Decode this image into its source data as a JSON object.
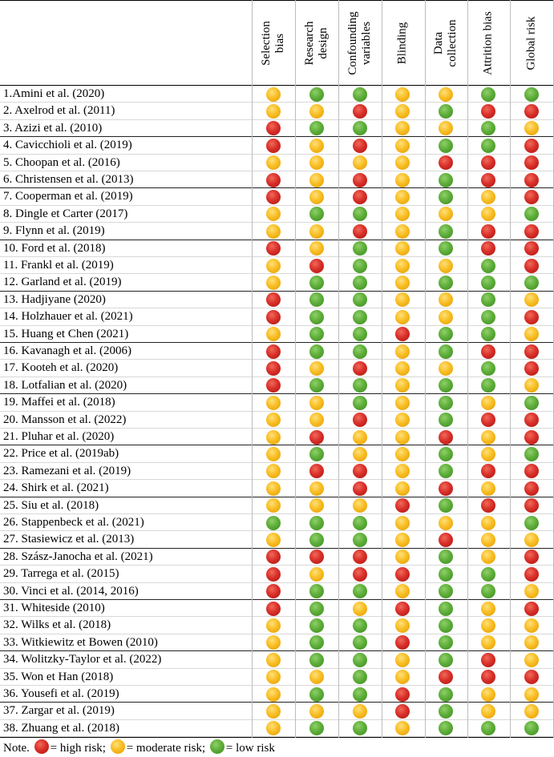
{
  "columns": [
    {
      "line1": "Selection",
      "line2": "bias"
    },
    {
      "line1": "Research",
      "line2": "design"
    },
    {
      "line1": "Confounding",
      "line2": "variables"
    },
    {
      "line1": "Blinding",
      "line2": ""
    },
    {
      "line1": "Data",
      "line2": "collection"
    },
    {
      "line1": "Attrition bias",
      "line2": ""
    },
    {
      "line1": "Global risk",
      "line2": ""
    }
  ],
  "colors": {
    "green": "#5fae3a",
    "yellow": "#f8be24",
    "red": "#d9302a"
  },
  "rows": [
    {
      "study": "1.Amini et al. (2020)",
      "ratings": [
        "yellow",
        "green",
        "green",
        "yellow",
        "yellow",
        "green",
        "green"
      ]
    },
    {
      "study": "2. Axelrod et al. (2011)",
      "ratings": [
        "yellow",
        "yellow",
        "red",
        "yellow",
        "green",
        "red",
        "red"
      ]
    },
    {
      "study": "3. Azizi et al. (2010)",
      "ratings": [
        "red",
        "green",
        "green",
        "yellow",
        "yellow",
        "green",
        "yellow"
      ]
    },
    {
      "study": "4. Cavicchioli et al. (2019)",
      "ratings": [
        "red",
        "yellow",
        "red",
        "yellow",
        "green",
        "green",
        "red"
      ]
    },
    {
      "study": "5. Choopan et al. (2016)",
      "ratings": [
        "yellow",
        "yellow",
        "yellow",
        "yellow",
        "red",
        "red",
        "red"
      ]
    },
    {
      "study": "6. Christensen et al. (2013)",
      "ratings": [
        "red",
        "yellow",
        "red",
        "yellow",
        "green",
        "red",
        "red"
      ]
    },
    {
      "study": "7. Cooperman et al. (2019)",
      "ratings": [
        "red",
        "yellow",
        "red",
        "yellow",
        "green",
        "yellow",
        "red"
      ]
    },
    {
      "study": "8. Dingle et Carter (2017)",
      "ratings": [
        "yellow",
        "green",
        "green",
        "yellow",
        "yellow",
        "yellow",
        "green"
      ]
    },
    {
      "study": "9. Flynn et al. (2019)",
      "ratings": [
        "yellow",
        "yellow",
        "red",
        "yellow",
        "green",
        "red",
        "red"
      ]
    },
    {
      "study": "10. Ford et al. (2018)",
      "ratings": [
        "red",
        "yellow",
        "green",
        "yellow",
        "green",
        "red",
        "red"
      ]
    },
    {
      "study": "11. Frankl et al. (2019)",
      "ratings": [
        "yellow",
        "red",
        "green",
        "yellow",
        "yellow",
        "green",
        "red"
      ]
    },
    {
      "study": "12. Garland et al. (2019)",
      "ratings": [
        "yellow",
        "green",
        "green",
        "yellow",
        "green",
        "green",
        "green"
      ]
    },
    {
      "study": "13. Hadjiyane (2020)",
      "ratings": [
        "red",
        "green",
        "green",
        "yellow",
        "yellow",
        "green",
        "yellow"
      ]
    },
    {
      "study": "14. Holzhauer et al. (2021)",
      "ratings": [
        "red",
        "green",
        "green",
        "yellow",
        "yellow",
        "green",
        "red"
      ]
    },
    {
      "study": "15. Huang et Chen (2021)",
      "ratings": [
        "yellow",
        "green",
        "green",
        "red",
        "green",
        "green",
        "yellow"
      ]
    },
    {
      "study": "16. Kavanagh et al. (2006)",
      "ratings": [
        "red",
        "green",
        "green",
        "yellow",
        "green",
        "red",
        "red"
      ]
    },
    {
      "study": "17. Kooteh et al. (2020)",
      "ratings": [
        "red",
        "yellow",
        "red",
        "yellow",
        "yellow",
        "green",
        "red"
      ]
    },
    {
      "study": "18. Lotfalian et al. (2020)",
      "ratings": [
        "red",
        "green",
        "green",
        "yellow",
        "green",
        "green",
        "yellow"
      ]
    },
    {
      "study": "19. Maffei et al. (2018)",
      "ratings": [
        "yellow",
        "yellow",
        "green",
        "yellow",
        "green",
        "yellow",
        "green"
      ]
    },
    {
      "study": "20. Mansson et al. (2022)",
      "ratings": [
        "yellow",
        "yellow",
        "red",
        "yellow",
        "green",
        "red",
        "red"
      ]
    },
    {
      "study": "21. Pluhar et al. (2020)",
      "ratings": [
        "yellow",
        "red",
        "yellow",
        "yellow",
        "red",
        "yellow",
        "red"
      ]
    },
    {
      "study": "22. Price et al. (2019ab)",
      "ratings": [
        "yellow",
        "green",
        "yellow",
        "yellow",
        "green",
        "yellow",
        "green"
      ]
    },
    {
      "study": "23. Ramezani et al. (2019)",
      "ratings": [
        "yellow",
        "red",
        "red",
        "yellow",
        "green",
        "red",
        "red"
      ]
    },
    {
      "study": "24. Shirk et al. (2021)",
      "ratings": [
        "yellow",
        "yellow",
        "red",
        "yellow",
        "red",
        "yellow",
        "red"
      ]
    },
    {
      "study": "25. Siu et al. (2018)",
      "ratings": [
        "yellow",
        "yellow",
        "yellow",
        "red",
        "green",
        "red",
        "red"
      ]
    },
    {
      "study": "26. Stappenbeck et al. (2021)",
      "ratings": [
        "green",
        "green",
        "green",
        "yellow",
        "yellow",
        "yellow",
        "green"
      ]
    },
    {
      "study": "27. Stasiewicz et al. (2013)",
      "ratings": [
        "yellow",
        "green",
        "green",
        "yellow",
        "red",
        "yellow",
        "yellow"
      ]
    },
    {
      "study": "28. Szász-Janocha et al. (2021)",
      "ratings": [
        "red",
        "red",
        "red",
        "yellow",
        "green",
        "yellow",
        "red"
      ]
    },
    {
      "study": "29. Tarrega et al. (2015)",
      "ratings": [
        "red",
        "yellow",
        "red",
        "red",
        "green",
        "green",
        "red"
      ]
    },
    {
      "study": "30. Vinci et al. (2014, 2016)",
      "ratings": [
        "red",
        "green",
        "green",
        "yellow",
        "green",
        "green",
        "yellow"
      ]
    },
    {
      "study": "31. Whiteside (2010)",
      "ratings": [
        "red",
        "green",
        "yellow",
        "red",
        "green",
        "yellow",
        "red"
      ]
    },
    {
      "study": "32. Wilks et al. (2018)",
      "ratings": [
        "yellow",
        "green",
        "green",
        "yellow",
        "green",
        "yellow",
        "yellow"
      ]
    },
    {
      "study": "33. Witkiewitz et Bowen (2010)",
      "ratings": [
        "yellow",
        "green",
        "green",
        "red",
        "green",
        "yellow",
        "yellow"
      ]
    },
    {
      "study": "34. Wolitzky-Taylor et al. (2022)",
      "ratings": [
        "yellow",
        "green",
        "green",
        "yellow",
        "green",
        "red",
        "yellow"
      ]
    },
    {
      "study": "35. Won et Han (2018)",
      "ratings": [
        "yellow",
        "yellow",
        "green",
        "yellow",
        "red",
        "red",
        "red"
      ]
    },
    {
      "study": "36. Yousefi et al. (2019)",
      "ratings": [
        "yellow",
        "green",
        "green",
        "red",
        "green",
        "yellow",
        "yellow"
      ]
    },
    {
      "study": "37. Zargar et al. (2019)",
      "ratings": [
        "yellow",
        "yellow",
        "yellow",
        "red",
        "green",
        "yellow",
        "yellow"
      ]
    },
    {
      "study": "38. Zhuang et al. (2018)",
      "ratings": [
        "yellow",
        "green",
        "green",
        "yellow",
        "green",
        "green",
        "green"
      ]
    }
  ],
  "note": {
    "prefix": "Note.",
    "high": "= high risk;",
    "moderate": "= moderate risk;",
    "low": "= low risk"
  }
}
